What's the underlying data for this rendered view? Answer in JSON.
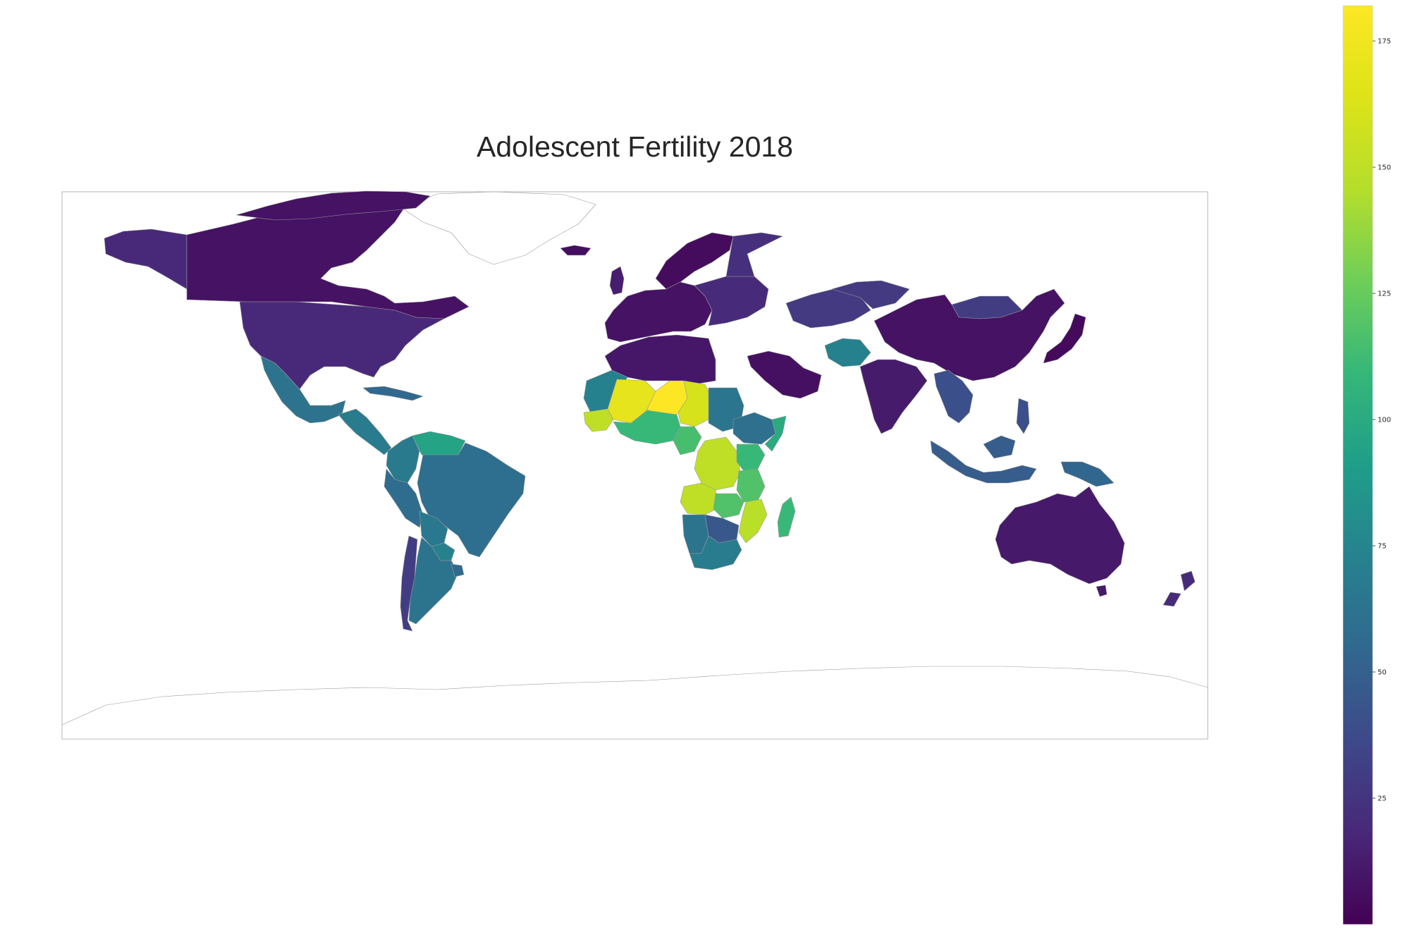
{
  "title": "Adolescent Fertility 2018",
  "colorbar": {
    "colormap": "viridis",
    "min": 0,
    "max": 182,
    "ticks": [
      25,
      50,
      75,
      100,
      125,
      150,
      175
    ]
  },
  "colors": {
    "no_data_fill": "#ffffff",
    "border": "#9a9a9a",
    "frame": "#b4b4b4"
  },
  "regions": [
    {
      "name": "Canada",
      "value": 8
    },
    {
      "name": "Greenland",
      "value": null
    },
    {
      "name": "Alaska",
      "value": 19
    },
    {
      "name": "United States",
      "value": 19
    },
    {
      "name": "Mexico",
      "value": 62
    },
    {
      "name": "Central America",
      "value": 68
    },
    {
      "name": "Caribbean",
      "value": 55
    },
    {
      "name": "Brazil",
      "value": 59
    },
    {
      "name": "Venezuela",
      "value": 95
    },
    {
      "name": "Colombia",
      "value": 67
    },
    {
      "name": "Peru",
      "value": 58
    },
    {
      "name": "Bolivia",
      "value": 66
    },
    {
      "name": "Paraguay",
      "value": 72
    },
    {
      "name": "Argentina",
      "value": 63
    },
    {
      "name": "Chile",
      "value": 30
    },
    {
      "name": "Uruguay",
      "value": 56
    },
    {
      "name": "Western Europe",
      "value": 8
    },
    {
      "name": "Scandinavia",
      "value": 5
    },
    {
      "name": "Iceland",
      "value": 6
    },
    {
      "name": "United Kingdom",
      "value": 13
    },
    {
      "name": "Russia",
      "value": 22
    },
    {
      "name": "Eastern Europe",
      "value": 20
    },
    {
      "name": "Kazakhstan",
      "value": 28
    },
    {
      "name": "Mongolia",
      "value": 30
    },
    {
      "name": "China",
      "value": 8
    },
    {
      "name": "Japan",
      "value": 4
    },
    {
      "name": "India",
      "value": 12
    },
    {
      "name": "Afghanistan",
      "value": 72
    },
    {
      "name": "Southeast Asia",
      "value": 40
    },
    {
      "name": "Indonesia",
      "value": 48
    },
    {
      "name": "Papua New Guinea",
      "value": 54
    },
    {
      "name": "Australia",
      "value": 11
    },
    {
      "name": "New Zealand",
      "value": 20
    },
    {
      "name": "North Africa",
      "value": 10
    },
    {
      "name": "Saudi Arabia",
      "value": 7
    },
    {
      "name": "Mauritania",
      "value": 72
    },
    {
      "name": "Mali",
      "value": 169
    },
    {
      "name": "Niger",
      "value": 182
    },
    {
      "name": "Chad",
      "value": 160
    },
    {
      "name": "Sudan",
      "value": 64
    },
    {
      "name": "Ethiopia",
      "value": 60
    },
    {
      "name": "Somalia",
      "value": 100
    },
    {
      "name": "Senegal",
      "value": 150
    },
    {
      "name": "Nigeria",
      "value": 110
    },
    {
      "name": "Cameroon",
      "value": 115
    },
    {
      "name": "Kenya",
      "value": 110
    },
    {
      "name": "Tanzania",
      "value": 118
    },
    {
      "name": "DR Congo",
      "value": 150
    },
    {
      "name": "Angola",
      "value": 150
    },
    {
      "name": "Zambia",
      "value": 118
    },
    {
      "name": "Mozambique",
      "value": 148
    },
    {
      "name": "Namibia",
      "value": 63
    },
    {
      "name": "Botswana",
      "value": 45
    },
    {
      "name": "South Africa",
      "value": 68
    },
    {
      "name": "Madagascar",
      "value": 110
    },
    {
      "name": "Antarctica",
      "value": null
    }
  ]
}
